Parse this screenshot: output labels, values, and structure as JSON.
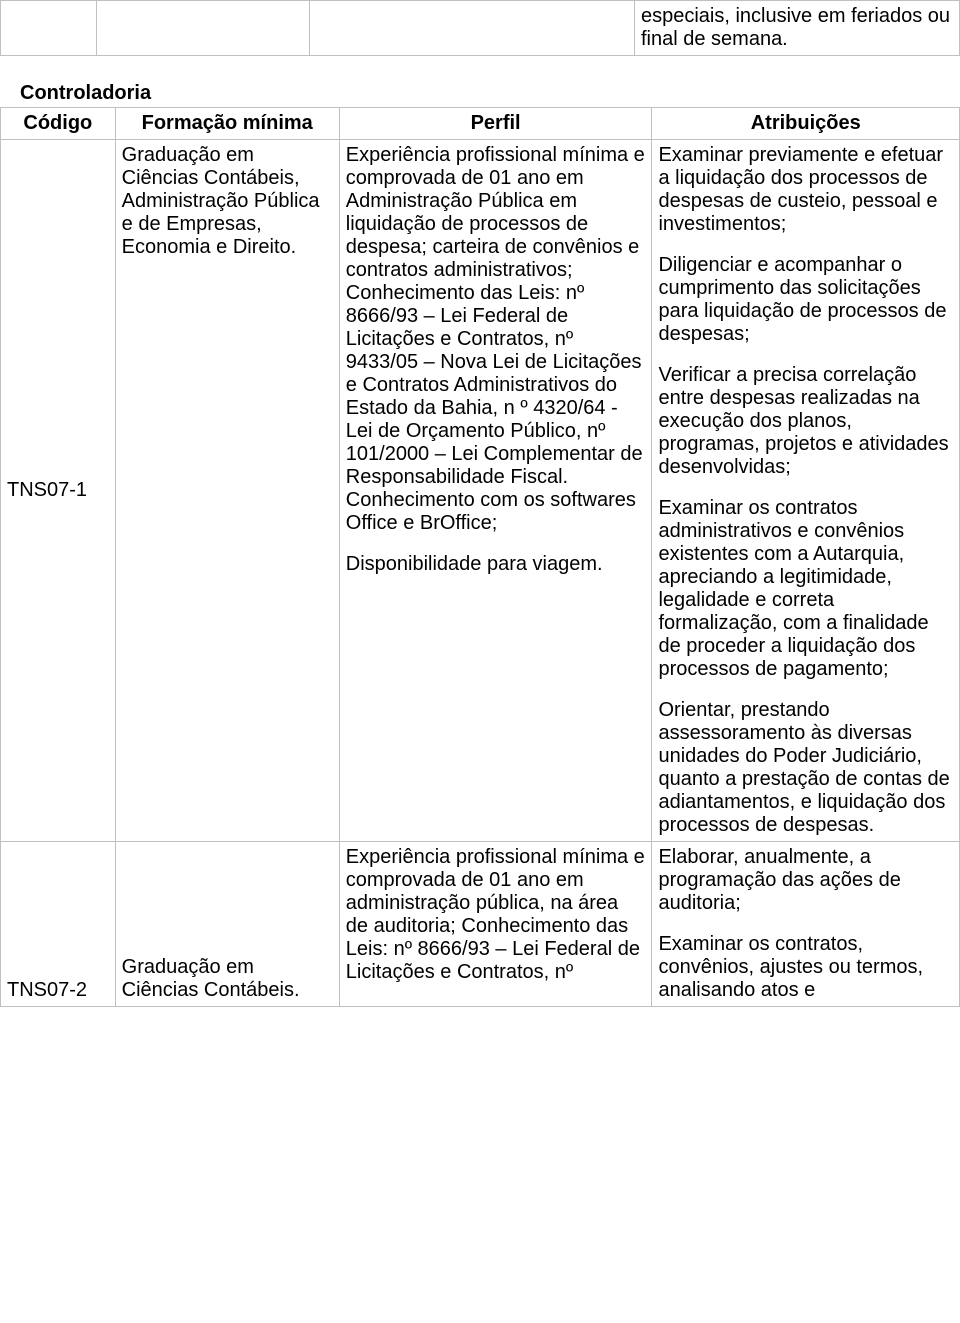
{
  "top_table": {
    "col4_text": "especiais, inclusive em feriados ou final de semana."
  },
  "section": {
    "title": "Controladoria"
  },
  "headers": {
    "codigo": "Código",
    "formacao": "Formação mínima",
    "perfil": "Perfil",
    "atribuicoes": "Atribuições"
  },
  "row1": {
    "code": "TNS07-1",
    "formacao": "Graduação em Ciências Contábeis, Administração Pública e de Empresas, Economia e Direito.",
    "perfil_p1": "Experiência profissional mínima e comprovada de 01 ano em Administração Pública em liquidação de processos de despesa; carteira de convênios e contratos administrativos; Conhecimento das Leis: nº 8666/93 – Lei Federal de Licitações e Contratos, nº 9433/05 – Nova Lei de Licitações e Contratos Administrativos do Estado da Bahia, n º 4320/64 - Lei de Orçamento Público, nº 101/2000 – Lei Complementar de Responsabilidade Fiscal. Conhecimento com os softwares Office e BrOffice;",
    "perfil_p2": "Disponibilidade para viagem.",
    "attr_p1": "Examinar previamente e efetuar a liquidação dos processos de despesas de custeio, pessoal e investimentos;",
    "attr_p2": "Diligenciar e acompanhar o cumprimento das solicitações para liquidação de processos de despesas;",
    "attr_p3": "Verificar a precisa correlação entre despesas realizadas na execução dos planos, programas, projetos e atividades desenvolvidas;",
    "attr_p4": "Examinar os contratos administrativos e convênios existentes com a Autarquia, apreciando a legitimidade, legalidade e correta formalização, com a finalidade de proceder a liquidação dos processos de pagamento;",
    "attr_p5": "Orientar, prestando assessoramento às diversas unidades do Poder Judiciário, quanto a prestação de contas de adiantamentos, e liquidação dos processos de despesas."
  },
  "row2": {
    "code": "TNS07-2",
    "formacao": "Graduação em Ciências Contábeis.",
    "perfil": "Experiência profissional mínima e comprovada de 01 ano em administração pública, na área de auditoria; Conhecimento das Leis: nº 8666/93 – Lei Federal de Licitações e Contratos, nº",
    "attr_p1": "Elaborar, anualmente, a programação das ações de auditoria;",
    "attr_p2": "Examinar os contratos, convênios, ajustes ou termos, analisando atos e"
  }
}
